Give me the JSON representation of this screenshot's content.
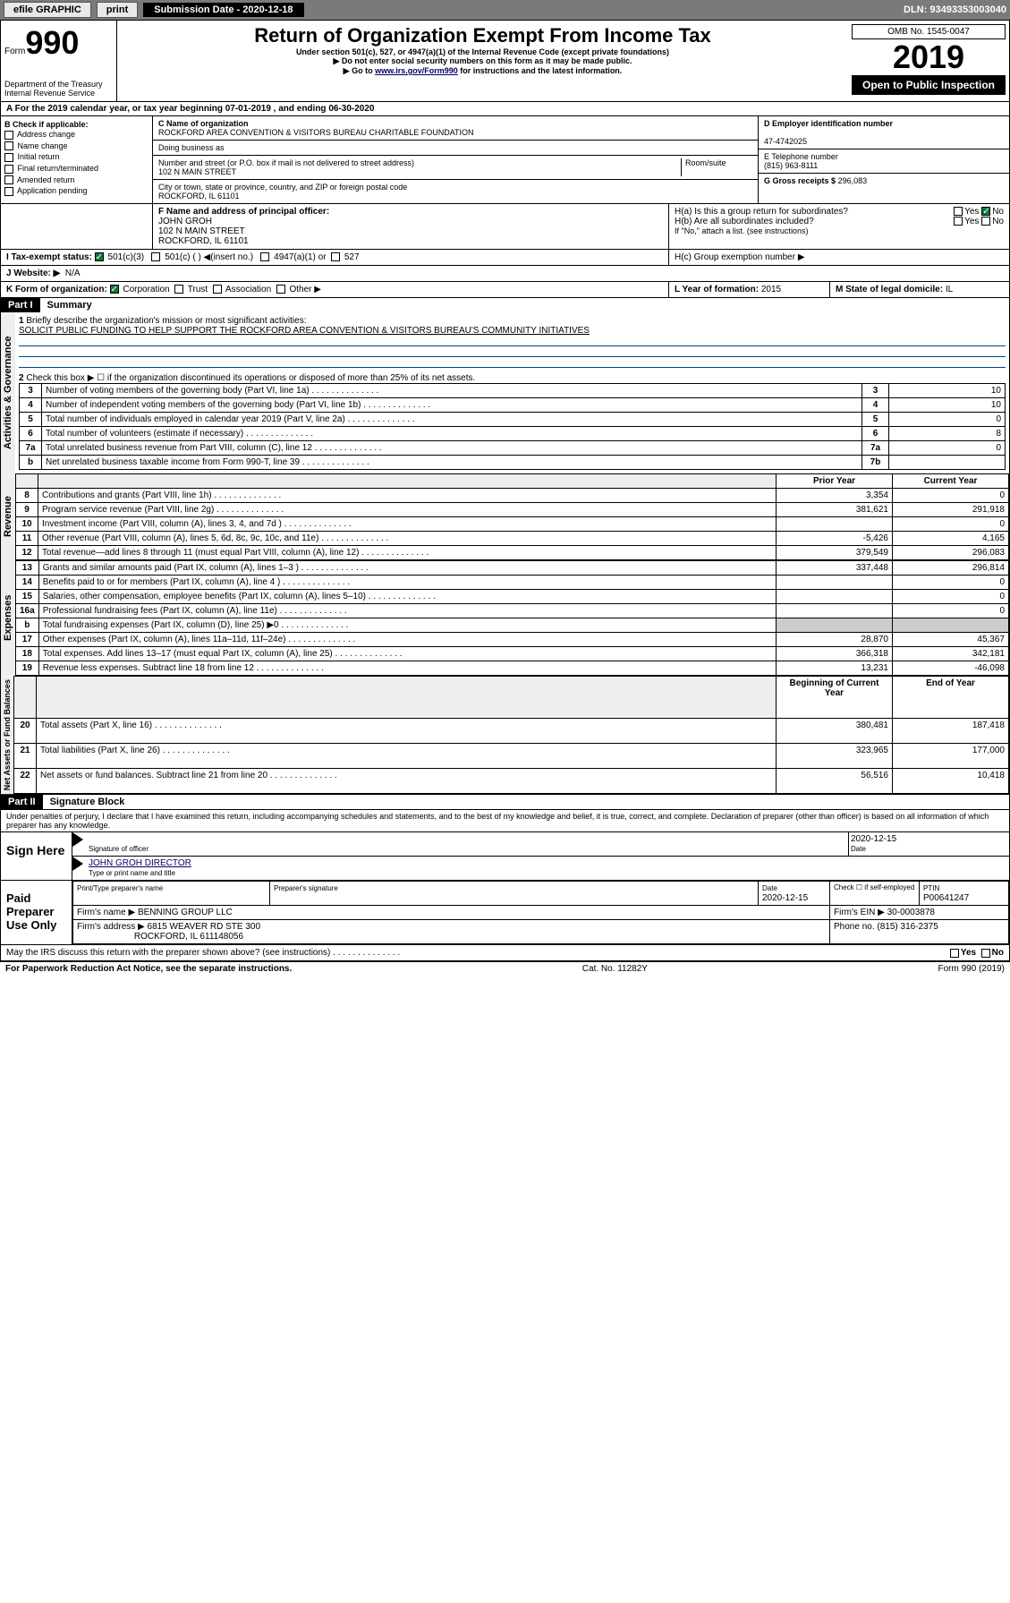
{
  "toolbar": {
    "efile": "efile GRAPHIC",
    "print": "print",
    "sub_label": "Submission Date - 2020-12-18",
    "dln": "DLN: 93493353003040"
  },
  "header": {
    "form_label": "Form",
    "form_num": "990",
    "dept": "Department of the Treasury",
    "irs": "Internal Revenue Service",
    "title": "Return of Organization Exempt From Income Tax",
    "sub1": "Under section 501(c), 527, or 4947(a)(1) of the Internal Revenue Code (except private foundations)",
    "sub2": "▶ Do not enter social security numbers on this form as it may be made public.",
    "sub3_pre": "▶ Go to ",
    "sub3_link": "www.irs.gov/Form990",
    "sub3_post": " for instructions and the latest information.",
    "omb": "OMB No. 1545-0047",
    "year": "2019",
    "open": "Open to Public Inspection"
  },
  "line_a": "A For the 2019 calendar year, or tax year beginning 07-01-2019   , and ending 06-30-2020",
  "box_b": {
    "title": "B Check if applicable:",
    "items": [
      "Address change",
      "Name change",
      "Initial return",
      "Final return/terminated",
      "Amended return",
      "Application pending"
    ]
  },
  "box_c": {
    "label": "C Name of organization",
    "name": "ROCKFORD AREA CONVENTION & VISITORS BUREAU CHARITABLE FOUNDATION",
    "dba_label": "Doing business as",
    "addr_label": "Number and street (or P.O. box if mail is not delivered to street address)",
    "room_label": "Room/suite",
    "addr": "102 N MAIN STREET",
    "city_label": "City or town, state or province, country, and ZIP or foreign postal code",
    "city": "ROCKFORD, IL  61101"
  },
  "box_d": {
    "label": "D Employer identification number",
    "value": "47-4742025"
  },
  "box_e": {
    "label": "E Telephone number",
    "value": "(815) 963-8111"
  },
  "box_g": {
    "label": "G Gross receipts $",
    "value": "296,083"
  },
  "box_f": {
    "label": "F Name and address of principal officer:",
    "name": "JOHN GROH",
    "addr1": "102 N MAIN STREET",
    "addr2": "ROCKFORD, IL  61101"
  },
  "box_h": {
    "ha": "H(a)  Is this a group return for subordinates?",
    "hb": "H(b)  Are all subordinates included?",
    "hb_note": "If \"No,\" attach a list. (see instructions)",
    "hc": "H(c)  Group exemption number ▶",
    "yes": "Yes",
    "no": "No"
  },
  "box_i": {
    "label": "I Tax-exempt status:",
    "c3": "501(c)(3)",
    "c": "501(c) (  ) ◀(insert no.)",
    "a1": "4947(a)(1) or",
    "s527": "527"
  },
  "box_j": {
    "label": "J  Website: ▶",
    "value": "N/A"
  },
  "box_k": {
    "label": "K Form of organization:",
    "corp": "Corporation",
    "trust": "Trust",
    "assoc": "Association",
    "other": "Other ▶"
  },
  "box_l": {
    "label": "L Year of formation:",
    "value": "2015"
  },
  "box_m": {
    "label": "M State of legal domicile:",
    "value": "IL"
  },
  "part1": {
    "num": "Part I",
    "title": "Summary"
  },
  "side_labels": {
    "ag": "Activities & Governance",
    "rev": "Revenue",
    "exp": "Expenses",
    "na": "Net Assets or Fund Balances"
  },
  "summary": {
    "q1": "Briefly describe the organization's mission or most significant activities:",
    "q1_ans": "SOLICIT PUBLIC FUNDING TO HELP SUPPORT THE ROCKFORD AREA CONVENTION & VISITORS BUREAU'S COMMUNITY INITIATIVES",
    "q2": "Check this box ▶ ☐  if the organization discontinued its operations or disposed of more than 25% of its net assets.",
    "rows_gov": [
      {
        "n": "3",
        "t": "Number of voting members of the governing body (Part VI, line 1a)",
        "idx": "3",
        "v": "10"
      },
      {
        "n": "4",
        "t": "Number of independent voting members of the governing body (Part VI, line 1b)",
        "idx": "4",
        "v": "10"
      },
      {
        "n": "5",
        "t": "Total number of individuals employed in calendar year 2019 (Part V, line 2a)",
        "idx": "5",
        "v": "0"
      },
      {
        "n": "6",
        "t": "Total number of volunteers (estimate if necessary)",
        "idx": "6",
        "v": "8"
      },
      {
        "n": "7a",
        "t": "Total unrelated business revenue from Part VIII, column (C), line 12",
        "idx": "7a",
        "v": "0"
      },
      {
        "n": "b",
        "t": "Net unrelated business taxable income from Form 990-T, line 39",
        "idx": "7b",
        "v": ""
      }
    ],
    "col_prior": "Prior Year",
    "col_curr": "Current Year",
    "rows_rev": [
      {
        "n": "8",
        "t": "Contributions and grants (Part VIII, line 1h)",
        "p": "3,354",
        "c": "0"
      },
      {
        "n": "9",
        "t": "Program service revenue (Part VIII, line 2g)",
        "p": "381,621",
        "c": "291,918"
      },
      {
        "n": "10",
        "t": "Investment income (Part VIII, column (A), lines 3, 4, and 7d )",
        "p": "",
        "c": "0"
      },
      {
        "n": "11",
        "t": "Other revenue (Part VIII, column (A), lines 5, 6d, 8c, 9c, 10c, and 11e)",
        "p": "-5,426",
        "c": "4,165"
      },
      {
        "n": "12",
        "t": "Total revenue—add lines 8 through 11 (must equal Part VIII, column (A), line 12)",
        "p": "379,549",
        "c": "296,083"
      }
    ],
    "rows_exp": [
      {
        "n": "13",
        "t": "Grants and similar amounts paid (Part IX, column (A), lines 1–3 )",
        "p": "337,448",
        "c": "296,814"
      },
      {
        "n": "14",
        "t": "Benefits paid to or for members (Part IX, column (A), line 4 )",
        "p": "",
        "c": "0"
      },
      {
        "n": "15",
        "t": "Salaries, other compensation, employee benefits (Part IX, column (A), lines 5–10)",
        "p": "",
        "c": "0"
      },
      {
        "n": "16a",
        "t": "Professional fundraising fees (Part IX, column (A), line 11e)",
        "p": "",
        "c": "0"
      },
      {
        "n": "b",
        "t": "Total fundraising expenses (Part IX, column (D), line 25) ▶0",
        "p": "—",
        "c": "—"
      },
      {
        "n": "17",
        "t": "Other expenses (Part IX, column (A), lines 11a–11d, 11f–24e)",
        "p": "28,870",
        "c": "45,367"
      },
      {
        "n": "18",
        "t": "Total expenses. Add lines 13–17 (must equal Part IX, column (A), line 25)",
        "p": "366,318",
        "c": "342,181"
      },
      {
        "n": "19",
        "t": "Revenue less expenses. Subtract line 18 from line 12",
        "p": "13,231",
        "c": "-46,098"
      }
    ],
    "col_beg": "Beginning of Current Year",
    "col_end": "End of Year",
    "rows_na": [
      {
        "n": "20",
        "t": "Total assets (Part X, line 16)",
        "p": "380,481",
        "c": "187,418"
      },
      {
        "n": "21",
        "t": "Total liabilities (Part X, line 26)",
        "p": "323,965",
        "c": "177,000"
      },
      {
        "n": "22",
        "t": "Net assets or fund balances. Subtract line 21 from line 20",
        "p": "56,516",
        "c": "10,418"
      }
    ]
  },
  "part2": {
    "num": "Part II",
    "title": "Signature Block"
  },
  "perjury": "Under penalties of perjury, I declare that I have examined this return, including accompanying schedules and statements, and to the best of my knowledge and belief, it is true, correct, and complete. Declaration of preparer (other than officer) is based on all information of which preparer has any knowledge.",
  "sign": {
    "label": "Sign Here",
    "sig_of": "Signature of officer",
    "date": "2020-12-15",
    "date_lbl": "Date",
    "name": "JOHN GROH DIRECTOR",
    "name_lbl": "Type or print name and title"
  },
  "paid": {
    "label": "Paid Preparer Use Only",
    "h_name": "Print/Type preparer's name",
    "h_sig": "Preparer's signature",
    "h_date": "Date",
    "h_date_v": "2020-12-15",
    "h_check": "Check ☐ if self-employed",
    "h_ptin": "PTIN",
    "ptin": "P00641247",
    "firm_lbl": "Firm's name    ▶",
    "firm": "BENNING GROUP LLC",
    "ein_lbl": "Firm's EIN ▶",
    "ein": "30-0003878",
    "addr_lbl": "Firm's address ▶",
    "addr": "6815 WEAVER RD STE 300",
    "addr2": "ROCKFORD, IL  611148056",
    "phone_lbl": "Phone no.",
    "phone": "(815) 316-2375"
  },
  "discuss": "May the IRS discuss this return with the preparer shown above? (see instructions)",
  "footer": {
    "left": "For Paperwork Reduction Act Notice, see the separate instructions.",
    "mid": "Cat. No. 11282Y",
    "right": "Form 990 (2019)"
  }
}
